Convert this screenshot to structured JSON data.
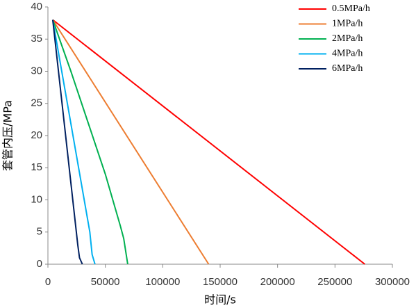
{
  "chart_data": {
    "type": "line",
    "xlabel": "时间/s",
    "ylabel": "套管内压/MPa",
    "xlim": [
      0,
      300000
    ],
    "xticks": [
      0,
      50000,
      100000,
      150000,
      200000,
      250000,
      300000
    ],
    "ylim": [
      0,
      40
    ],
    "yticks": [
      0,
      5,
      10,
      15,
      20,
      25,
      30,
      35,
      40
    ],
    "grid": false,
    "legend": "upper right",
    "series": [
      {
        "name": "0.5MPa/h",
        "color": "#ff0000",
        "x": [
          4200,
          276000
        ],
        "values": [
          38,
          0
        ]
      },
      {
        "name": "1MPa/h",
        "color": "#ed7d31",
        "x": [
          4200,
          140000
        ],
        "values": [
          38,
          0
        ]
      },
      {
        "name": "2MPa/h",
        "color": "#00b050",
        "x": [
          4200,
          20000,
          35000,
          50000,
          63000,
          66000,
          69500
        ],
        "values": [
          38,
          30,
          22,
          14,
          6,
          4,
          0
        ]
      },
      {
        "name": "4MPa/h",
        "color": "#00b0f0",
        "x": [
          4200,
          36500,
          38500,
          41000
        ],
        "values": [
          38,
          5,
          1.5,
          0
        ]
      },
      {
        "name": "6MPa/h",
        "color": "#002060",
        "x": [
          4200,
          26000,
          27500,
          30000
        ],
        "values": [
          38,
          3,
          1,
          0
        ]
      }
    ]
  }
}
